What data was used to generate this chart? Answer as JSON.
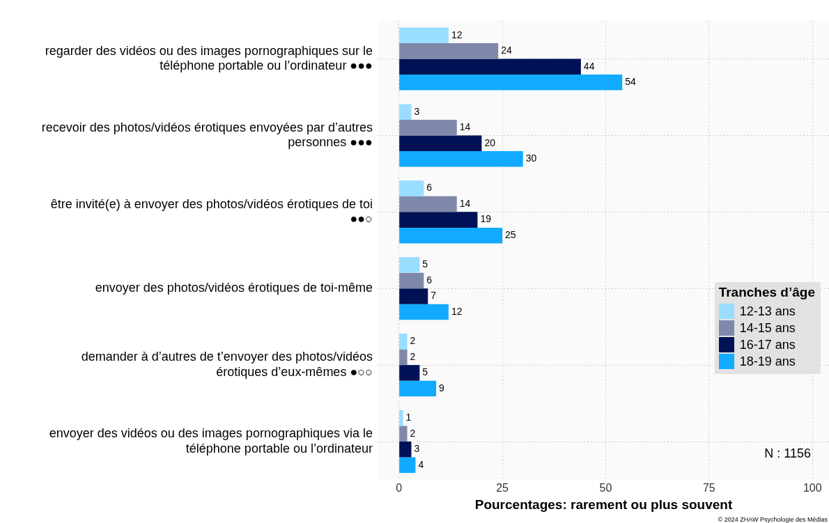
{
  "chart_data": {
    "type": "bar",
    "orientation": "horizontal",
    "xlabel": "Pourcentages: rarement ou plus souvent",
    "legend_title": "Tranches d’âge",
    "legend": "right",
    "grid": true,
    "data_labels": true,
    "categories": [
      "regarder des vidéos ou des images pornographiques sur le téléphone portable ou l’ordinateur ●●●",
      "recevoir des photos/vidéos érotiques envoyées par d’autres personnes ●●●",
      "être invité(e) à envoyer des photos/vidéos érotiques de toi ●●○",
      "envoyer des photos/vidéos érotiques de toi-même",
      "demander à d’autres de t’envoyer des photos/vidéos érotiques d’eux-mêmes ●○○",
      "envoyer des vidéos ou des images pornographiques via le téléphone portable ou l’ordinateur"
    ],
    "series": [
      {
        "name": "12-13 ans",
        "color": "#99ddff",
        "values": [
          12,
          3,
          6,
          5,
          2,
          1
        ]
      },
      {
        "name": "14-15 ans",
        "color": "#8088aa",
        "values": [
          24,
          14,
          14,
          6,
          2,
          2
        ]
      },
      {
        "name": "16-17 ans",
        "color": "#001155",
        "values": [
          44,
          20,
          19,
          7,
          5,
          3
        ]
      },
      {
        "name": "18-19 ans",
        "color": "#11aaff",
        "values": [
          54,
          30,
          25,
          12,
          9,
          4
        ]
      }
    ],
    "xlim": [
      -5,
      104
    ],
    "xticks": [
      0,
      25,
      50,
      75,
      100
    ],
    "annotations": [
      "N : 1156",
      "© 2024 ZHAW Psychologie des Médias"
    ]
  }
}
